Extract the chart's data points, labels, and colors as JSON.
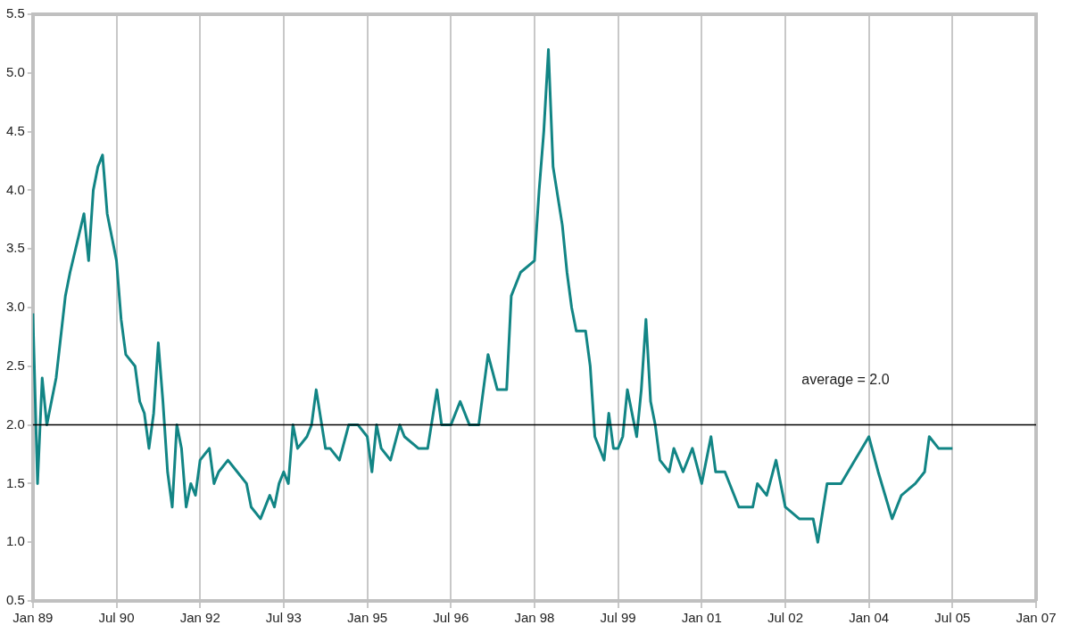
{
  "chart_data": {
    "type": "line",
    "x": [
      "1989-01",
      "1989-02",
      "1989-03",
      "1989-04",
      "1989-05",
      "1989-06",
      "1989-08",
      "1989-09",
      "1989-12",
      "1990-01",
      "1990-02",
      "1990-03",
      "1990-04",
      "1990-05",
      "1990-06",
      "1990-07",
      "1990-08",
      "1990-09",
      "1990-11",
      "1990-12",
      "1991-01",
      "1991-02",
      "1991-03",
      "1991-04",
      "1991-05",
      "1991-06",
      "1991-07",
      "1991-08",
      "1991-09",
      "1991-10",
      "1991-11",
      "1991-12",
      "1992-01",
      "1992-03",
      "1992-04",
      "1992-05",
      "1992-07",
      "1992-09",
      "1992-11",
      "1992-12",
      "1993-02",
      "1993-04",
      "1993-05",
      "1993-06",
      "1993-07",
      "1993-08",
      "1993-09",
      "1993-10",
      "1993-12",
      "1994-01",
      "1994-02",
      "1994-04",
      "1994-05",
      "1994-07",
      "1994-09",
      "1994-11",
      "1995-01",
      "1995-02",
      "1995-03",
      "1995-04",
      "1995-06",
      "1995-08",
      "1995-09",
      "1995-12",
      "1996-02",
      "1996-04",
      "1996-05",
      "1996-07",
      "1996-09",
      "1996-11",
      "1997-01",
      "1997-03",
      "1997-05",
      "1997-07",
      "1997-08",
      "1997-10",
      "1998-01",
      "1998-02",
      "1998-03",
      "1998-04",
      "1998-05",
      "1998-07",
      "1998-08",
      "1998-09",
      "1998-10",
      "1998-12",
      "1999-01",
      "1999-02",
      "1999-03",
      "1999-04",
      "1999-05",
      "1999-06",
      "1999-07",
      "1999-08",
      "1999-09",
      "1999-11",
      "1999-12",
      "2000-01",
      "2000-02",
      "2000-03",
      "2000-04",
      "2000-06",
      "2000-07",
      "2000-09",
      "2000-11",
      "2001-01",
      "2001-03",
      "2001-04",
      "2001-06",
      "2001-09",
      "2001-12",
      "2002-01",
      "2002-03",
      "2002-05",
      "2002-07",
      "2002-10",
      "2003-01",
      "2003-02",
      "2003-04",
      "2003-07",
      "2003-10",
      "2004-01",
      "2004-03",
      "2004-06",
      "2004-08",
      "2004-11",
      "2005-01",
      "2005-02",
      "2005-04",
      "2005-07"
    ],
    "series": [
      {
        "color": "#128585",
        "values": [
          2.95,
          1.5,
          2.4,
          2.0,
          2.2,
          2.4,
          3.1,
          3.3,
          3.8,
          3.4,
          4.0,
          4.2,
          4.3,
          3.8,
          3.6,
          3.4,
          2.9,
          2.6,
          2.5,
          2.2,
          2.1,
          1.8,
          2.1,
          2.7,
          2.2,
          1.6,
          1.3,
          2.0,
          1.8,
          1.3,
          1.5,
          1.4,
          1.7,
          1.8,
          1.5,
          1.6,
          1.7,
          1.6,
          1.5,
          1.3,
          1.2,
          1.4,
          1.3,
          1.5,
          1.6,
          1.5,
          2.0,
          1.8,
          1.9,
          2.0,
          2.3,
          1.8,
          1.8,
          1.7,
          2.0,
          2.0,
          1.9,
          1.6,
          2.0,
          1.8,
          1.7,
          2.0,
          1.9,
          1.8,
          1.8,
          2.3,
          2.0,
          2.0,
          2.2,
          2.0,
          2.0,
          2.6,
          2.3,
          2.3,
          3.1,
          3.3,
          3.4,
          4.0,
          4.5,
          5.2,
          4.2,
          3.7,
          3.3,
          3.0,
          2.8,
          2.8,
          2.5,
          1.9,
          1.8,
          1.7,
          2.1,
          1.8,
          1.8,
          1.9,
          2.3,
          1.9,
          2.3,
          2.9,
          2.2,
          2.0,
          1.7,
          1.6,
          1.8,
          1.6,
          1.8,
          1.5,
          1.9,
          1.6,
          1.6,
          1.3,
          1.3,
          1.5,
          1.4,
          1.7,
          1.3,
          1.2,
          1.2,
          1.0,
          1.5,
          1.5,
          1.7,
          1.9,
          1.6,
          1.2,
          1.4,
          1.5,
          1.6,
          1.9,
          1.8,
          1.8
        ]
      }
    ],
    "xlim": [
      "1989-01",
      "2007-01"
    ],
    "xticks": [
      {
        "value": "1989-01",
        "label": "Jan 89"
      },
      {
        "value": "1990-07",
        "label": "Jul 90"
      },
      {
        "value": "1992-01",
        "label": "Jan 92"
      },
      {
        "value": "1993-07",
        "label": "Jul 93"
      },
      {
        "value": "1995-01",
        "label": "Jan 95"
      },
      {
        "value": "1996-07",
        "label": "Jul 96"
      },
      {
        "value": "1998-01",
        "label": "Jan 98"
      },
      {
        "value": "1999-07",
        "label": "Jul 99"
      },
      {
        "value": "2001-01",
        "label": "Jan 01"
      },
      {
        "value": "2002-07",
        "label": "Jul 02"
      },
      {
        "value": "2004-01",
        "label": "Jan 04"
      },
      {
        "value": "2005-07",
        "label": "Jul 05"
      },
      {
        "value": "2007-01",
        "label": "Jan 07"
      }
    ],
    "ylim": [
      0.5,
      5.5
    ],
    "yticks": [
      {
        "value": 0.5,
        "label": "0.5"
      },
      {
        "value": 1,
        "label": "1.0"
      },
      {
        "value": 1.5,
        "label": "1.5"
      },
      {
        "value": 2,
        "label": "2.0"
      },
      {
        "value": 2.5,
        "label": "2.5"
      },
      {
        "value": 3,
        "label": "3.0"
      },
      {
        "value": 3.5,
        "label": "3.5"
      },
      {
        "value": 4,
        "label": "4.0"
      },
      {
        "value": 4.5,
        "label": "4.5"
      },
      {
        "value": 5,
        "label": "5.0"
      },
      {
        "value": 5.5,
        "label": "5.5"
      }
    ],
    "ref_lines": [
      {
        "axis": "y",
        "value": 2.0,
        "label": "average = 2.0",
        "color": "#000000"
      }
    ],
    "grid": "x",
    "marker": "none",
    "line_style": "solid"
  }
}
